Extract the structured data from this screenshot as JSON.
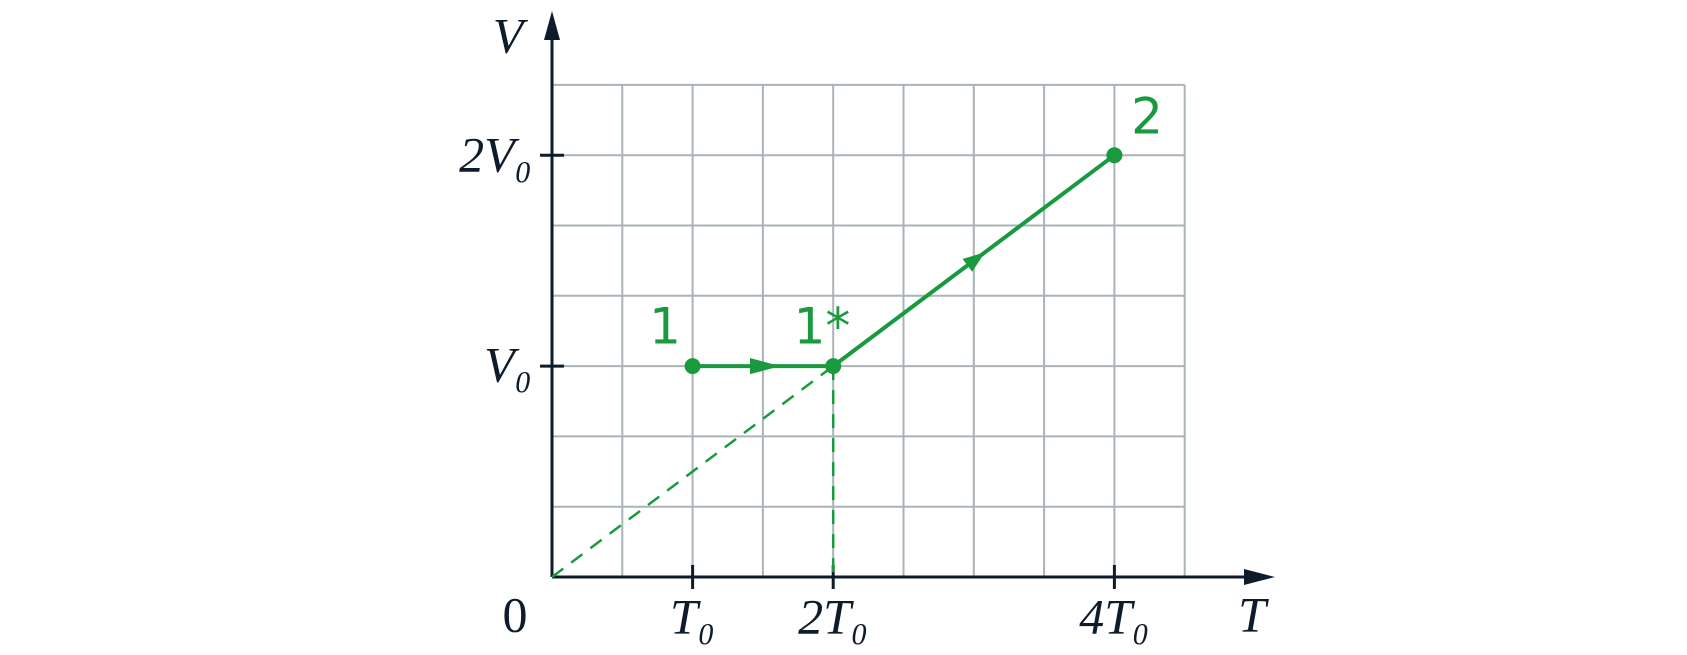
{
  "axes": {
    "y_label": "V",
    "x_label": "T",
    "origin": "0"
  },
  "x_ticks": [
    "T₀",
    "2T₀",
    "4T₀"
  ],
  "y_ticks": [
    "V₀",
    "2V₀"
  ],
  "points": [
    {
      "label": "1"
    },
    {
      "label": "1*"
    },
    {
      "label": "2"
    }
  ]
}
